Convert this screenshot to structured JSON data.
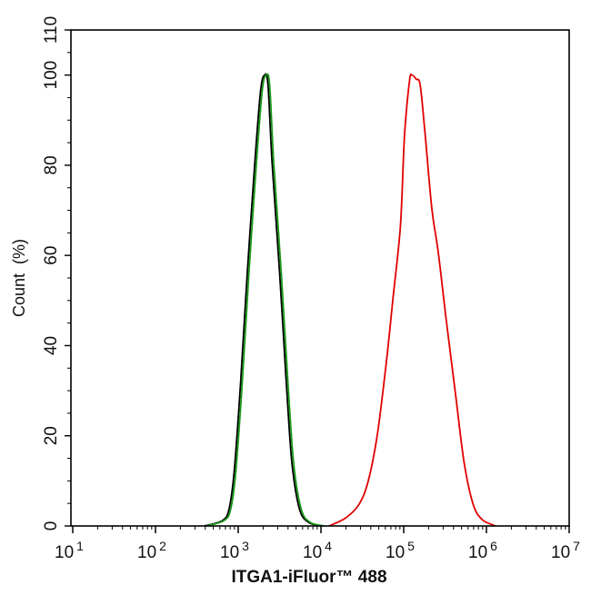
{
  "chart_data": {
    "type": "line",
    "title": "",
    "xlabel": "ITGA1-iFluor™ 488",
    "ylabel": "Count  (%)",
    "xscale": "log",
    "xlim": [
      10,
      10000000
    ],
    "ylim": [
      0,
      110
    ],
    "x_tick_labels": [
      {
        "base": "10",
        "exp": "1"
      },
      {
        "base": "10",
        "exp": "2"
      },
      {
        "base": "10",
        "exp": "3"
      },
      {
        "base": "10",
        "exp": "4"
      },
      {
        "base": "10",
        "exp": "5"
      },
      {
        "base": "10",
        "exp": "6"
      },
      {
        "base": "10",
        "exp": "7"
      }
    ],
    "y_ticks": [
      0,
      20,
      40,
      60,
      80,
      100,
      110
    ],
    "grid": false,
    "legend": null,
    "series": [
      {
        "name": "black",
        "color": "#000000",
        "log10_x": [
          2.59,
          2.81,
          2.89,
          2.95,
          3.03,
          3.11,
          3.2,
          3.27,
          3.32,
          3.36,
          3.41,
          3.5,
          3.58,
          3.65,
          3.74,
          3.85,
          4.02
        ],
        "y": [
          0,
          1.2,
          3.8,
          11.9,
          32.0,
          56.2,
          80.4,
          96.5,
          100,
          97.7,
          80.4,
          56.2,
          32.0,
          13.9,
          3.8,
          0.8,
          0
        ]
      },
      {
        "name": "green",
        "color": "#1a9a1a",
        "log10_x": [
          2.61,
          2.83,
          2.91,
          2.97,
          3.05,
          3.13,
          3.22,
          3.29,
          3.34,
          3.38,
          3.43,
          3.52,
          3.6,
          3.67,
          3.76,
          3.87,
          4.04
        ],
        "y": [
          0,
          1.2,
          3.8,
          11.9,
          32.0,
          56.2,
          80.4,
          96.5,
          100,
          97.7,
          80.4,
          56.2,
          32.0,
          13.9,
          3.8,
          0.8,
          0
        ]
      },
      {
        "name": "red",
        "color": "#e00000",
        "log10_x": [
          4.1,
          4.3,
          4.46,
          4.57,
          4.68,
          4.79,
          4.87,
          4.96,
          5.01,
          5.07,
          5.1,
          5.15,
          5.2,
          5.26,
          5.34,
          5.42,
          5.51,
          5.62,
          5.73,
          5.84,
          5.95,
          6.11
        ],
        "y": [
          0,
          1.8,
          4.8,
          9.9,
          20.1,
          36.3,
          50.4,
          66.5,
          86.6,
          98.7,
          100,
          99.1,
          97.7,
          86.6,
          70.5,
          60.4,
          46.3,
          30.2,
          14.1,
          4.8,
          1.4,
          0
        ]
      }
    ]
  },
  "plot": {
    "y_tick_labels": [
      "0",
      "20",
      "40",
      "60",
      "80",
      "100",
      "110"
    ]
  }
}
